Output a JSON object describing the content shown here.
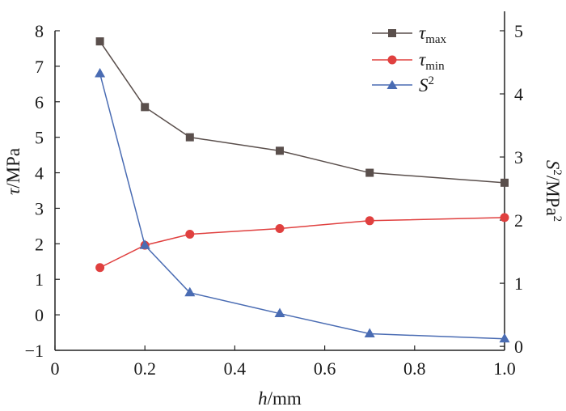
{
  "chart_data": {
    "type": "line",
    "x_axis": {
      "label_var": "h",
      "label_unit": "/mm",
      "min": 0,
      "max": 1.0,
      "ticks": [
        0,
        0.2,
        0.4,
        0.6,
        0.8,
        1.0
      ],
      "tick_labels": [
        "0",
        "0.2",
        "0.4",
        "0.6",
        "0.8",
        "1.0"
      ]
    },
    "y_axis_left": {
      "label_var": "τ",
      "label_unit": "/MPa",
      "min": -1,
      "max": 8,
      "ticks": [
        -1,
        0,
        1,
        2,
        3,
        4,
        5,
        6,
        7,
        8
      ],
      "tick_labels": [
        "−1",
        "0",
        "1",
        "2",
        "3",
        "4",
        "5",
        "6",
        "7",
        "8"
      ]
    },
    "y_axis_right": {
      "label_var": "S",
      "label_sup": "2",
      "label_unit": "/MPa",
      "label_unit_sup": "2",
      "min": -0.0625,
      "max": 5,
      "ticks": [
        0,
        1,
        2,
        3,
        4,
        5
      ],
      "tick_labels": [
        "0",
        "1",
        "2",
        "3",
        "4",
        "5"
      ]
    },
    "x": [
      0.1,
      0.2,
      0.3,
      0.5,
      0.7,
      1.0
    ],
    "series": [
      {
        "name": "τ",
        "name_sub": "max",
        "axis": "left",
        "color": "#5a4f4c",
        "marker": "square",
        "values": [
          7.7,
          5.85,
          5.0,
          4.62,
          4.0,
          3.72
        ]
      },
      {
        "name": "τ",
        "name_sub": "min",
        "axis": "left",
        "color": "#e0403f",
        "marker": "circle",
        "values": [
          1.33,
          1.96,
          2.27,
          2.43,
          2.65,
          2.74
        ]
      },
      {
        "name": "S",
        "name_sup": "2",
        "axis": "right",
        "color": "#4a6cb3",
        "marker": "triangle",
        "values": [
          4.32,
          1.6,
          0.85,
          0.52,
          0.2,
          0.12
        ]
      }
    ],
    "grid": false,
    "legend_position": "top-right"
  }
}
